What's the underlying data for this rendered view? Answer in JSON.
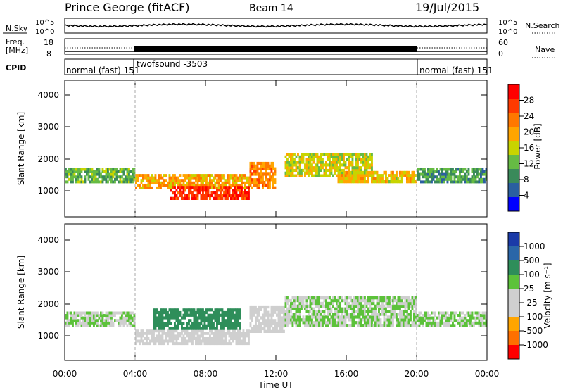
{
  "header": {
    "title": "Prince George (fitACF)",
    "beam": "Beam 14",
    "date": "19/Jul/2015"
  },
  "noise_panel": {
    "left_label": "N.Sky",
    "right_label": "N.Search",
    "left_ticks": [
      "10^5",
      "10^0"
    ],
    "right_ticks": [
      "10^5",
      "10^0"
    ]
  },
  "freq_panel": {
    "left_label_1": "Freq.",
    "left_label_2": "[MHz]",
    "right_label": "Nave",
    "left_ticks": [
      "18",
      "8"
    ],
    "right_ticks": [
      "60",
      "0"
    ]
  },
  "cpid_panel": {
    "label": "CPID",
    "segments": [
      {
        "label": "normal (fast) 151",
        "start": "00:00",
        "end": "04:00"
      },
      {
        "label": "twofsound -3503",
        "start": "04:00",
        "end": "20:00"
      },
      {
        "label": "normal (fast) 151",
        "start": "20:00",
        "end": "00:00"
      }
    ]
  },
  "power_panel": {
    "ylabel": "Slant Range [km]",
    "yticks": [
      "4000",
      "3000",
      "2000",
      "1000"
    ],
    "colorbar_label": "Power [dB]",
    "colorbar_ticks": [
      "28",
      "24",
      "20",
      "16",
      "12",
      "8",
      "4"
    ],
    "colorbar_colors": [
      "#ff0000",
      "#ff3a00",
      "#ff7800",
      "#ffa500",
      "#c8d400",
      "#66bb44",
      "#3a8a5a",
      "#2a5fa0",
      "#0000ff"
    ]
  },
  "velocity_panel": {
    "ylabel": "Slant Range [km]",
    "yticks": [
      "4000",
      "3000",
      "2000",
      "1000"
    ],
    "colorbar_label": "Velocity [m s⁻¹]",
    "colorbar_ticks": [
      "1000",
      "500",
      "100",
      "25",
      "-25",
      "-100",
      "-500",
      "-1000"
    ],
    "colorbar_colors": [
      "#1a3aa8",
      "#2a66a8",
      "#2e8e5a",
      "#5cc23a",
      "#cfcfcf",
      "#cfcfcf",
      "#ffa500",
      "#ff7000",
      "#ff0000"
    ]
  },
  "x_axis": {
    "label": "Time UT",
    "ticks": [
      "00:00",
      "04:00",
      "08:00",
      "12:00",
      "16:00",
      "20:00",
      "00:00"
    ]
  },
  "chart_data": [
    {
      "type": "heatmap",
      "title": "Power",
      "xlabel": "Time UT",
      "ylabel": "Slant Range [km]",
      "x_range": [
        "00:00",
        "24:00"
      ],
      "ylim": [
        180,
        4700
      ],
      "color_scale": {
        "label": "Power [dB]",
        "range": [
          0,
          32
        ]
      },
      "regions": [
        {
          "desc": "band",
          "t0": 0.0,
          "t1": 4.0,
          "r0": 1300,
          "r1": 1800,
          "value": 12
        },
        {
          "desc": "band",
          "t0": 4.0,
          "t1": 10.5,
          "r0": 1100,
          "r1": 1600,
          "value": 20
        },
        {
          "desc": "band",
          "t0": 6.0,
          "t1": 10.5,
          "r0": 750,
          "r1": 1200,
          "value": 28
        },
        {
          "desc": "band",
          "t0": 10.5,
          "t1": 12.0,
          "r0": 1100,
          "r1": 2000,
          "value": 22
        },
        {
          "desc": "band",
          "t0": 12.5,
          "t1": 17.5,
          "r0": 1500,
          "r1": 2300,
          "value": 16
        },
        {
          "desc": "band",
          "t0": 15.5,
          "t1": 20.0,
          "r0": 1300,
          "r1": 1700,
          "value": 18
        },
        {
          "desc": "band",
          "t0": 20.0,
          "t1": 24.0,
          "r0": 1300,
          "r1": 1800,
          "value": 10
        }
      ]
    },
    {
      "type": "heatmap",
      "title": "Velocity",
      "xlabel": "Time UT",
      "ylabel": "Slant Range [km]",
      "x_range": [
        "00:00",
        "24:00"
      ],
      "ylim": [
        180,
        4700
      ],
      "color_scale": {
        "label": "Velocity [m s⁻¹]",
        "range": [
          -1000,
          1000
        ]
      },
      "regions": [
        {
          "desc": "band",
          "t0": 0.0,
          "t1": 4.0,
          "r0": 1300,
          "r1": 1800,
          "value": 0
        },
        {
          "desc": "band",
          "t0": 4.0,
          "t1": 10.5,
          "r0": 700,
          "r1": 1200,
          "value": -100
        },
        {
          "desc": "band",
          "t0": 5.0,
          "t1": 10.0,
          "r0": 1200,
          "r1": 1900,
          "value": 100
        },
        {
          "desc": "band",
          "t0": 10.5,
          "t1": 12.5,
          "r0": 1100,
          "r1": 2000,
          "value": -100
        },
        {
          "desc": "band",
          "t0": 12.5,
          "t1": 20.0,
          "r0": 1300,
          "r1": 2300,
          "value": 0
        },
        {
          "desc": "band",
          "t0": 20.0,
          "t1": 24.0,
          "r0": 1300,
          "r1": 1800,
          "value": 0
        }
      ]
    }
  ]
}
